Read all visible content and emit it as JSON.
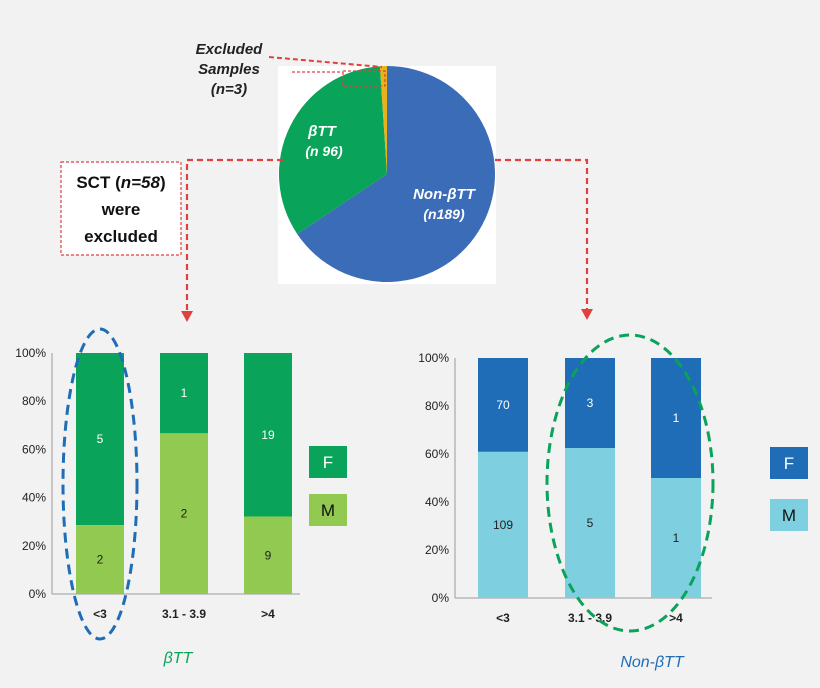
{
  "pie": {
    "slices": [
      {
        "label": "Non-βTT",
        "count_label": "(n189)",
        "value": 189,
        "color": "#3b6cb7"
      },
      {
        "label": "βTT",
        "count_label": "(n 96)",
        "value": 96,
        "color": "#0aa35a"
      },
      {
        "label": "Excluded Samples",
        "count_label": "(n=3)",
        "value": 3,
        "color": "#e8b21a"
      }
    ],
    "excluded_line1": "Excluded",
    "excluded_line2": "Samples",
    "excluded_line3": "(n=3)",
    "btt_line1": "βTT",
    "btt_line2": "(n 96)",
    "nonbtt_line1": "Non-βTT",
    "nonbtt_line2": "(n189)"
  },
  "sct_note": {
    "line1_prefix": "SCT (",
    "line1_italic": "n=58",
    "line1_suffix": ")",
    "line2": "were",
    "line3": "excluded"
  },
  "chart_data": [
    {
      "type": "bar",
      "stacked": true,
      "normalized": true,
      "title": "βTT",
      "categories": [
        "<3",
        "3.1 - 3.9",
        ">4"
      ],
      "series": [
        {
          "name": "M",
          "values": [
            2,
            2,
            9
          ],
          "color": "#92c950"
        },
        {
          "name": "F",
          "values": [
            5,
            1,
            19
          ],
          "color": "#0aa35a"
        }
      ],
      "yticks": [
        "0%",
        "20%",
        "40%",
        "60%",
        "80%",
        "100%"
      ],
      "ylim": [
        0,
        100
      ],
      "legend": "right",
      "highlight": "<3"
    },
    {
      "type": "bar",
      "stacked": true,
      "normalized": true,
      "title": "Non-βTT",
      "categories": [
        "<3",
        "3.1 - 3.9",
        ">4"
      ],
      "series": [
        {
          "name": "M",
          "values": [
            109,
            5,
            1
          ],
          "color": "#7ecfe0"
        },
        {
          "name": "F",
          "values": [
            70,
            3,
            1
          ],
          "color": "#1e6db6"
        }
      ],
      "yticks": [
        "0%",
        "20%",
        "40%",
        "60%",
        "80%",
        "100%"
      ],
      "ylim": [
        0,
        100
      ],
      "legend": "right",
      "highlight": "3.1 - 3.9 and >4"
    }
  ],
  "colors": {
    "connector": "#e0413f",
    "btt_title": "#0aa35a",
    "nonbtt_title": "#1e6db6",
    "highlight_left": "#1e6db6",
    "highlight_right": "#0aa35a"
  }
}
